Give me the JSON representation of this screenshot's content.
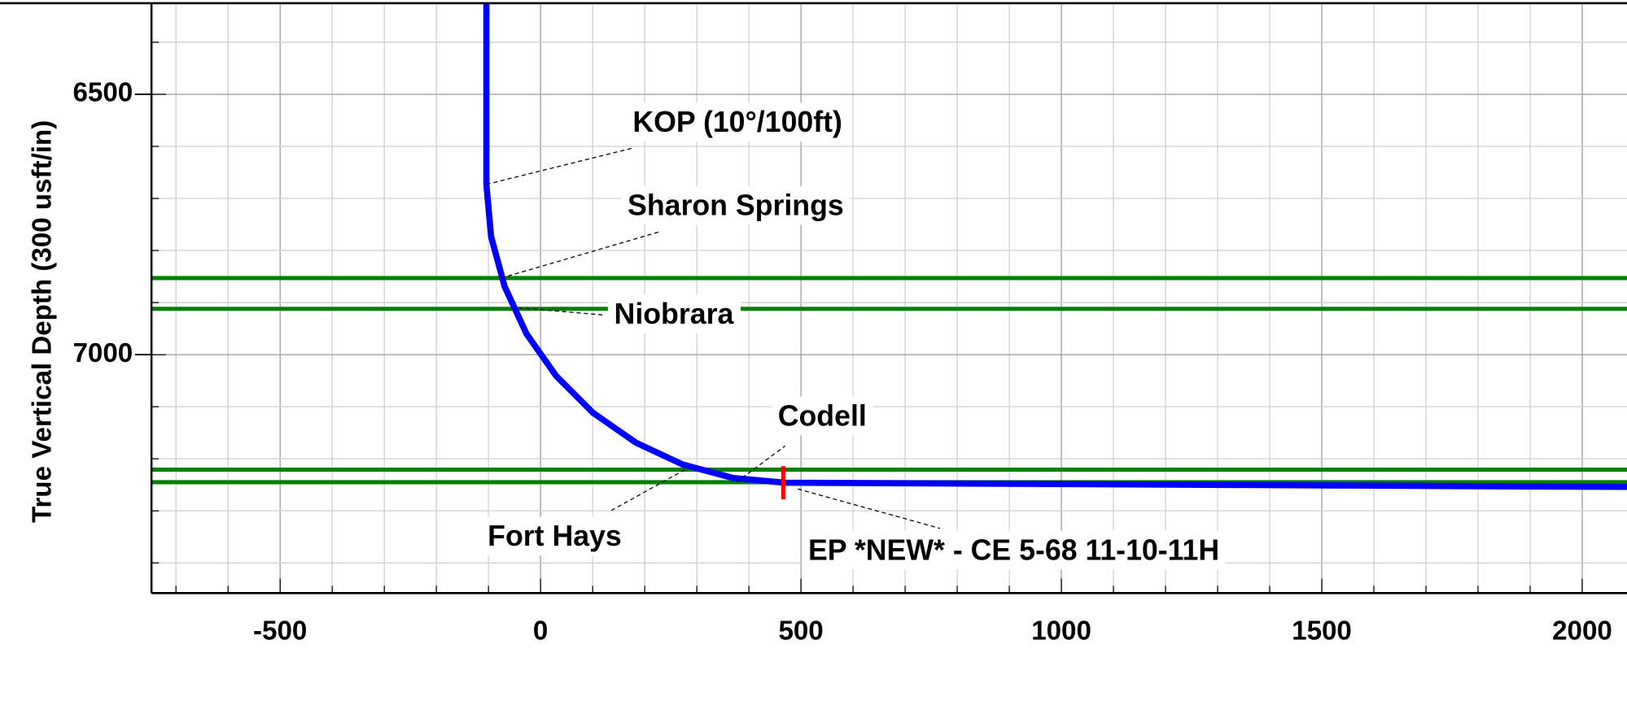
{
  "chart_data": {
    "type": "line",
    "y_label": "True Vertical Depth (300 usft/in)",
    "xlim": [
      -747,
      2086
    ],
    "ylim": [
      7458,
      6325
    ],
    "xticks": [
      -500,
      0,
      500,
      1000,
      1500,
      2000
    ],
    "yticks": [
      6500,
      7000
    ],
    "x_minor_ticks": [
      -700,
      -600,
      -500,
      -400,
      -300,
      -200,
      -100,
      0,
      100,
      200,
      300,
      400,
      500,
      600,
      700,
      800,
      900,
      1000,
      1100,
      1200,
      1300,
      1400,
      1500,
      1600,
      1700,
      1800,
      1900,
      2000
    ],
    "y_minor_ticks": [
      6400,
      6500,
      6600,
      6700,
      6800,
      6900,
      7000,
      7100,
      7200,
      7300,
      7400
    ],
    "grid": true,
    "well_path": {
      "color": "#0000ff",
      "x": [
        -104,
        -104,
        -95,
        -69,
        -27,
        30,
        101,
        183,
        273,
        370,
        469,
        2086
      ],
      "y": [
        6325,
        6673,
        6773,
        6869,
        6960,
        7041,
        7112,
        7169,
        7211,
        7237,
        7246,
        7254
      ]
    },
    "formations": [
      {
        "tvd": 6853,
        "color": "#008000"
      },
      {
        "tvd": 6912,
        "color": "#008000"
      },
      {
        "tvd": 7221,
        "color": "#008000"
      },
      {
        "tvd": 7245,
        "color": "#008000"
      }
    ],
    "landing": {
      "x": 466,
      "y": 7246,
      "color": "#ff0000"
    },
    "annotations": [
      {
        "text": "KOP (10°/100ft)",
        "x": -104,
        "y": 6673
      },
      {
        "text": "Sharon Springs",
        "x": -76,
        "y": 6853
      },
      {
        "text": "Niobrara",
        "x": -42,
        "y": 6910
      },
      {
        "text": "Codell",
        "x": 376,
        "y": 7245
      },
      {
        "text": "Fort Hays",
        "x": 277,
        "y": 7221
      },
      {
        "text": "EP *NEW* - CE 5-68 11-10-11H",
        "x": 494,
        "y": 7258
      }
    ]
  }
}
